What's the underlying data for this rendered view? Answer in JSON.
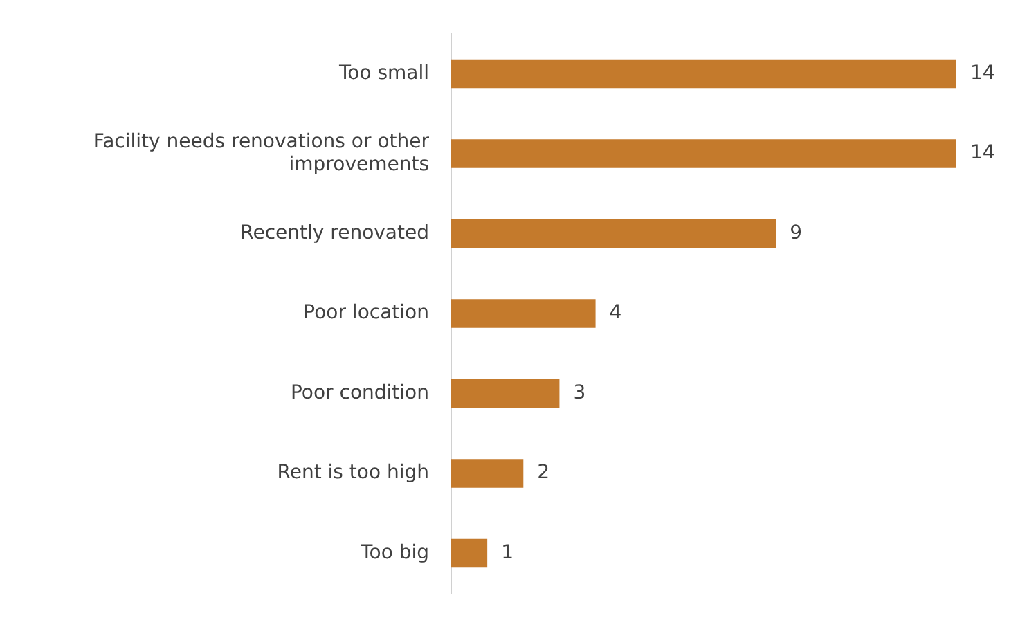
{
  "chart_data": {
    "type": "bar",
    "orientation": "horizontal",
    "categories": [
      "Too small",
      "Facility needs renovations or other improvements",
      "Recently renovated",
      "Poor location",
      "Poor condition",
      "Rent is too high",
      "Too big"
    ],
    "values": [
      14,
      14,
      9,
      4,
      3,
      2,
      1
    ],
    "color": "#c47a2c",
    "data_labels": true
  }
}
